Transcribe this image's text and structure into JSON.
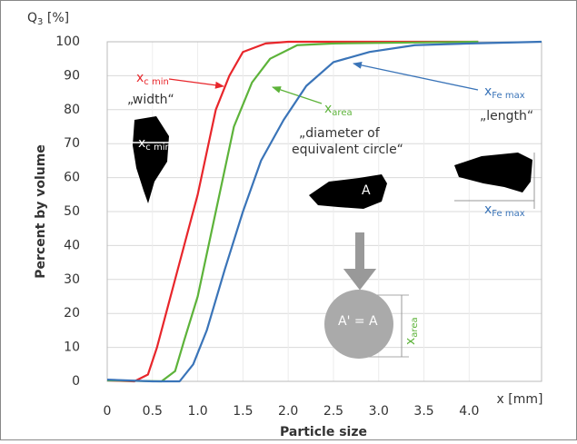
{
  "chart_data": {
    "type": "line",
    "x_label": "Particle size",
    "y_label": "Percent by volume",
    "y_unit": {
      "text": "Q",
      "sub": "3",
      "rest": " [%]"
    },
    "x_unit": "x [mm]",
    "xlim": [
      0,
      4.8
    ],
    "ylim": [
      0,
      100
    ],
    "xticks": [
      0,
      0.5,
      {
        "value": 1,
        "label": "1.0"
      },
      1.5,
      {
        "value": 2,
        "label": "2.0"
      },
      2.5,
      {
        "value": 3,
        "label": "3.0"
      },
      3.5,
      {
        "value": 4,
        "label": "4.0"
      }
    ],
    "yticks": [
      0,
      10,
      20,
      30,
      40,
      50,
      60,
      70,
      80,
      90,
      100
    ],
    "grid": true,
    "series": [
      {
        "color": "#e8262b",
        "label": {
          "text": "x",
          "sub": "c min"
        },
        "note": [
          "„width“"
        ],
        "x": [
          0,
          0.3,
          0.45,
          0.55,
          0.65,
          0.8,
          1.0,
          1.2,
          1.35,
          1.5,
          1.75,
          2.0,
          4.1
        ],
        "values": [
          0.3,
          0,
          2,
          10,
          20,
          35,
          55,
          80,
          90,
          97,
          99.5,
          100,
          100
        ]
      },
      {
        "color": "#5db33a",
        "label": {
          "text": "x",
          "sub": "area"
        },
        "note": [
          "„diameter of",
          "equivalent circle“"
        ],
        "x": [
          0,
          0.6,
          0.75,
          0.85,
          1.0,
          1.2,
          1.4,
          1.6,
          1.8,
          2.1,
          2.5,
          4.1
        ],
        "values": [
          0.3,
          0,
          3,
          12,
          25,
          50,
          75,
          88,
          95,
          99,
          99.5,
          100
        ]
      },
      {
        "color": "#3a74b8",
        "label": {
          "text": "x",
          "sub": "Fe max"
        },
        "note": [
          "„length“"
        ],
        "x": [
          0,
          0.5,
          0.8,
          0.95,
          1.1,
          1.3,
          1.5,
          1.7,
          1.95,
          2.2,
          2.5,
          2.9,
          3.4,
          4.0,
          4.8
        ],
        "values": [
          0.5,
          0,
          0,
          5,
          15,
          33,
          50,
          65,
          77,
          87,
          94,
          97,
          99,
          99.5,
          100
        ]
      }
    ],
    "shape_labels": [
      {
        "text": "x",
        "sub": "c min"
      },
      {
        "text": "A"
      },
      {
        "text": "A' = A"
      },
      {
        "text": "x",
        "sub": "area"
      },
      {
        "text": "x",
        "sub": "Fe max"
      }
    ]
  }
}
